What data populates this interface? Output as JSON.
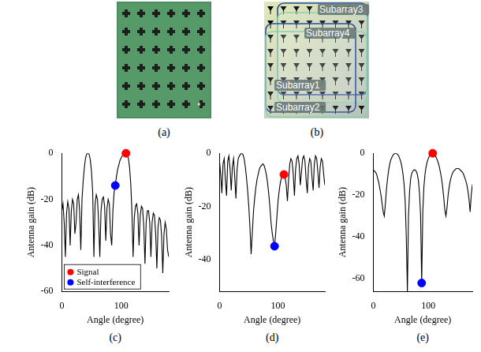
{
  "panels": {
    "a": {
      "caption": "(a)"
    },
    "b": {
      "caption": "(b)",
      "subarrays": [
        "Subarray3",
        "Subarray4",
        "Subarray1",
        "Subarray2"
      ]
    }
  },
  "chart_data": [
    {
      "type": "line",
      "caption": "(c)",
      "xlabel": "Angle (degree)",
      "ylabel": "Antenna gain (dB)",
      "xlim": [
        0,
        180
      ],
      "xticks": [
        0,
        100
      ],
      "ylim": [
        -60,
        0
      ],
      "yticks": [
        -60,
        -40,
        -20,
        0
      ],
      "grid": false,
      "legend": "lower left",
      "series": [
        {
          "type": "line",
          "color": "#000000",
          "x": [
            0,
            2,
            4,
            6,
            8,
            10,
            12,
            14,
            16,
            18,
            20,
            22,
            24,
            26,
            28,
            30,
            32,
            34,
            36,
            38,
            40,
            42,
            44,
            46,
            48,
            50,
            52,
            54,
            56,
            58,
            60,
            62,
            64,
            66,
            68,
            70,
            72,
            74,
            76,
            78,
            80,
            82,
            84,
            86,
            88,
            90,
            92,
            94,
            96,
            98,
            100,
            102,
            104,
            106,
            108,
            110,
            112,
            114,
            116,
            118,
            120,
            122,
            124,
            126,
            128,
            130,
            132,
            134,
            136,
            138,
            140,
            142,
            144,
            146,
            148,
            150,
            152,
            154,
            156,
            158,
            160,
            162,
            164,
            166,
            168,
            170,
            172,
            174,
            176,
            178,
            180
          ],
          "values": [
            -25,
            -22,
            -30,
            -45,
            -26,
            -21,
            -24,
            -40,
            -25,
            -20,
            -22,
            -35,
            -30,
            -20,
            -18,
            -25,
            -42,
            -20,
            -12,
            -6,
            -2,
            -0.3,
            0,
            -0.5,
            -3,
            -8,
            -17,
            -45,
            -22,
            -18,
            -20,
            -30,
            -45,
            -25,
            -20,
            -19,
            -23,
            -38,
            -24,
            -20,
            -22,
            -35,
            -40,
            -25,
            -17,
            -14,
            -10,
            -7,
            -5,
            -3,
            -2,
            -1,
            -0.5,
            -0.2,
            0,
            -0.5,
            -2,
            -6,
            -13,
            -25,
            -45,
            -28,
            -23,
            -22,
            -26,
            -40,
            -27,
            -23,
            -24,
            -32,
            -48,
            -30,
            -25,
            -25,
            -30,
            -45,
            -30,
            -26,
            -27,
            -35,
            -50,
            -32,
            -28,
            -29,
            -36,
            -52,
            -35,
            -30,
            -33,
            -42,
            -45
          ]
        },
        {
          "type": "scatter",
          "name": "Signal",
          "color": "#ff0000",
          "marker": "circle",
          "x": [
            108
          ],
          "values": [
            0
          ]
        },
        {
          "type": "scatter",
          "name": "Self-interference",
          "color": "#0000ff",
          "marker": "circle",
          "x": [
            90
          ],
          "values": [
            -14
          ]
        }
      ]
    },
    {
      "type": "line",
      "caption": "(d)",
      "xlabel": "Angle (degree)",
      "ylabel": "Antenna gain (dB)",
      "xlim": [
        0,
        180
      ],
      "xticks": [
        0,
        100
      ],
      "ylim": [
        -52,
        0
      ],
      "yticks": [
        -40,
        -20,
        0
      ],
      "grid": false,
      "series": [
        {
          "type": "line",
          "color": "#000000",
          "x": [
            0,
            2,
            4,
            6,
            8,
            10,
            12,
            14,
            16,
            18,
            20,
            22,
            24,
            26,
            28,
            30,
            32,
            34,
            36,
            38,
            40,
            42,
            44,
            46,
            48,
            50,
            52,
            54,
            56,
            58,
            60,
            62,
            64,
            66,
            68,
            70,
            72,
            74,
            76,
            78,
            80,
            82,
            84,
            86,
            88,
            90,
            92,
            94,
            96,
            98,
            100,
            102,
            104,
            106,
            108,
            110,
            112,
            114,
            116,
            118,
            120,
            122,
            124,
            126,
            128,
            130,
            132,
            134,
            136,
            138,
            140,
            142,
            144,
            146,
            148,
            150,
            152,
            154,
            156,
            158,
            160,
            162,
            164,
            166,
            168,
            170,
            172,
            174,
            176,
            178,
            180
          ],
          "values": [
            -3,
            -8,
            -15,
            -4,
            -2,
            -10,
            -16,
            -3,
            -1,
            -6,
            -14,
            -5,
            -2,
            -9,
            -17,
            -6,
            -2,
            -1,
            -0.3,
            0,
            -0.5,
            -2,
            -5,
            -9,
            -14,
            -20,
            -28,
            -38,
            -30,
            -22,
            -17,
            -13,
            -10,
            -8,
            -6,
            -5,
            -4.5,
            -4,
            -4.5,
            -6,
            -8,
            -11,
            -15,
            -20,
            -26,
            -30,
            -33,
            -35,
            -30,
            -24,
            -18,
            -14,
            -11,
            -9,
            -8.5,
            -8,
            -9,
            -12,
            -18,
            -10,
            -4,
            -2,
            -3,
            -8,
            -16,
            -6,
            -2,
            -1,
            -4,
            -12,
            -7,
            -2,
            -1,
            -3,
            -10,
            -15,
            -5,
            -2,
            -3,
            -9,
            -14,
            -4,
            -1,
            -2,
            -7,
            -13,
            -5,
            -2,
            -3,
            -8,
            -12
          ]
        },
        {
          "type": "scatter",
          "color": "#ff0000",
          "marker": "circle",
          "x": [
            110
          ],
          "values": [
            -8
          ]
        },
        {
          "type": "scatter",
          "color": "#0000ff",
          "marker": "circle",
          "x": [
            94
          ],
          "values": [
            -35
          ]
        }
      ]
    },
    {
      "type": "line",
      "caption": "(e)",
      "xlabel": "Angle (degree)",
      "ylabel": "Antenna gain (dB)",
      "xlim": [
        0,
        180
      ],
      "xticks": [
        0,
        100
      ],
      "ylim": [
        -66,
        0
      ],
      "yticks": [
        -60,
        -40,
        -20,
        0
      ],
      "grid": false,
      "series": [
        {
          "type": "line",
          "color": "#000000",
          "x": [
            0,
            2,
            4,
            6,
            8,
            10,
            12,
            14,
            16,
            18,
            20,
            22,
            24,
            26,
            28,
            30,
            32,
            34,
            36,
            38,
            40,
            42,
            44,
            46,
            48,
            50,
            52,
            54,
            56,
            58,
            60,
            62,
            64,
            66,
            68,
            70,
            72,
            74,
            76,
            78,
            80,
            82,
            84,
            86,
            88,
            90,
            92,
            94,
            96,
            98,
            100,
            102,
            104,
            106,
            108,
            110,
            112,
            114,
            116,
            118,
            120,
            122,
            124,
            126,
            128,
            130,
            132,
            134,
            136,
            138,
            140,
            142,
            144,
            146,
            148,
            150,
            152,
            154,
            156,
            158,
            160,
            162,
            164,
            166,
            168,
            170,
            172,
            174,
            176,
            178,
            180
          ],
          "values": [
            -8,
            -8.5,
            -9,
            -10,
            -12,
            -14,
            -17,
            -20,
            -24,
            -28,
            -30,
            -24,
            -17,
            -12,
            -8,
            -5,
            -3,
            -1.8,
            -0.8,
            -0.3,
            0,
            -0.1,
            -0.5,
            -1.2,
            -2.5,
            -4,
            -6.5,
            -10,
            -15,
            -23,
            -40,
            -66,
            -30,
            -18,
            -12,
            -9.5,
            -8.5,
            -8,
            -8,
            -8.5,
            -10,
            -13,
            -19,
            -30,
            -62,
            -28,
            -16,
            -10,
            -6.5,
            -4,
            -2.5,
            -1.3,
            -0.6,
            -0.2,
            0,
            -0.2,
            -0.8,
            -1.8,
            -3,
            -4.5,
            -6.5,
            -9,
            -12,
            -16,
            -21,
            -27,
            -30,
            -26,
            -20,
            -16,
            -13,
            -11,
            -9.5,
            -8.5,
            -8,
            -7.5,
            -7.3,
            -7.3,
            -7.5,
            -8,
            -8.5,
            -9,
            -10,
            -11.5,
            -13,
            -15,
            -18,
            -22,
            -28,
            -20,
            -15
          ]
        },
        {
          "type": "scatter",
          "color": "#ff0000",
          "marker": "circle",
          "x": [
            108
          ],
          "values": [
            0
          ]
        },
        {
          "type": "scatter",
          "color": "#0000ff",
          "marker": "circle",
          "x": [
            88
          ],
          "values": [
            -62
          ]
        }
      ]
    }
  ]
}
